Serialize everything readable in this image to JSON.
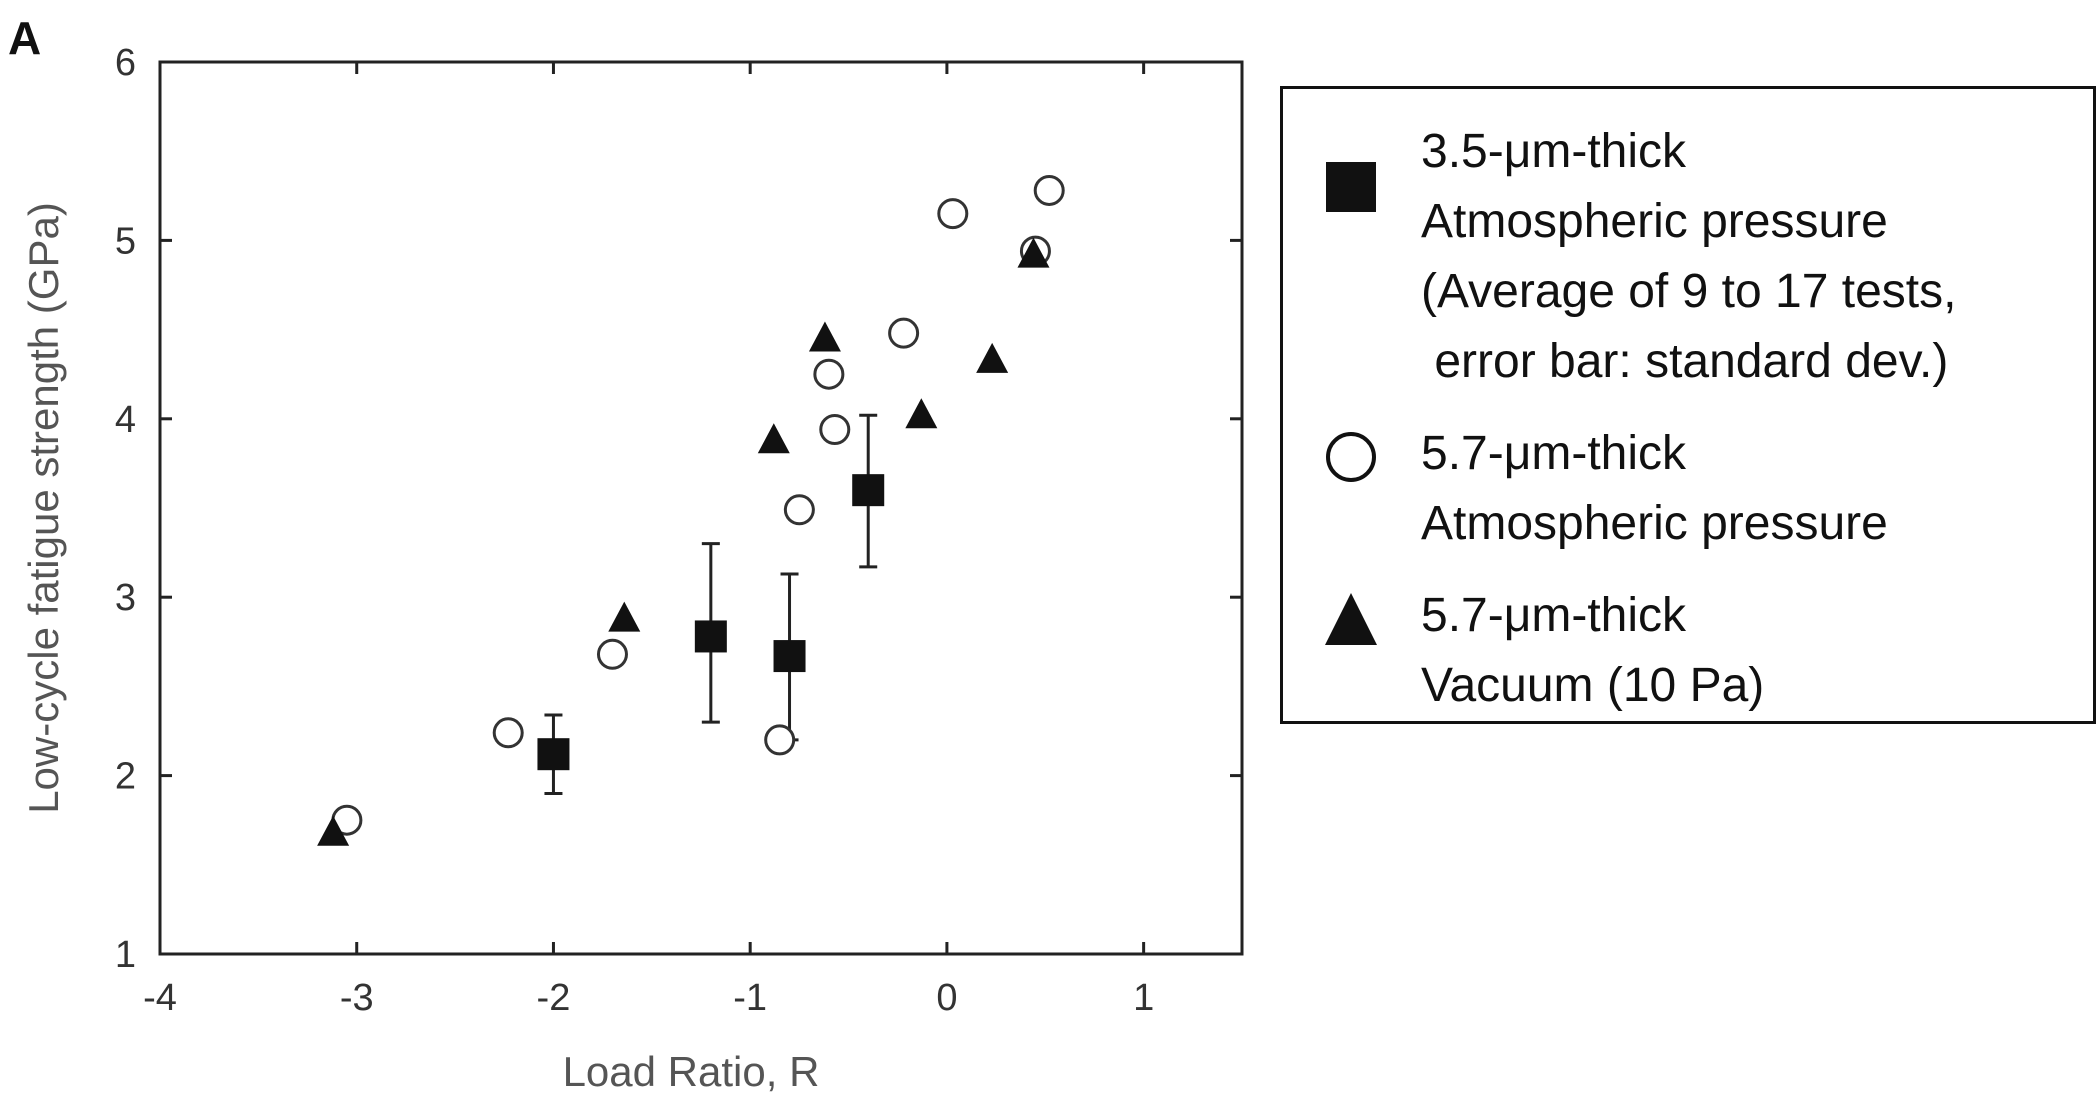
{
  "panel_label": "A",
  "chart_data": {
    "type": "scatter",
    "title": "",
    "xlabel": "Load Ratio, R",
    "ylabel": "Low-cycle fatigue strength (GPa)",
    "xlim": [
      -4,
      1.5
    ],
    "ylim": [
      1,
      6
    ],
    "xticks": [
      -4,
      -3,
      -2,
      -1,
      0,
      1
    ],
    "yticks": [
      1,
      2,
      3,
      4,
      5,
      6
    ],
    "xtick_labels": [
      "-4",
      "-3",
      "-2",
      "-1",
      "0",
      "1"
    ],
    "ytick_labels": [
      "1",
      "2",
      "3",
      "4",
      "5",
      "6"
    ],
    "grid": false,
    "legend_position": "right, outside plot",
    "series": [
      {
        "key": "square",
        "marker": "filled-square",
        "legend_lines": [
          "3.5-μm-thick",
          "Atmospheric pressure",
          "(Average of 9 to 17 tests,",
          " error bar: standard dev.)"
        ],
        "points": [
          {
            "x": -2.0,
            "y": 2.12,
            "err_low": 1.9,
            "err_high": 2.34
          },
          {
            "x": -1.2,
            "y": 2.78,
            "err_low": 2.3,
            "err_high": 3.3
          },
          {
            "x": -0.8,
            "y": 2.67,
            "err_low": 2.2,
            "err_high": 3.13
          },
          {
            "x": -0.4,
            "y": 3.6,
            "err_low": 3.17,
            "err_high": 4.02
          }
        ]
      },
      {
        "key": "circle",
        "marker": "open-circle",
        "legend_lines": [
          "5.7-μm-thick",
          "Atmospheric pressure"
        ],
        "points": [
          {
            "x": -3.05,
            "y": 1.75
          },
          {
            "x": -2.23,
            "y": 2.24
          },
          {
            "x": -1.7,
            "y": 2.68
          },
          {
            "x": -0.85,
            "y": 2.2
          },
          {
            "x": -0.75,
            "y": 3.49
          },
          {
            "x": -0.6,
            "y": 4.25
          },
          {
            "x": -0.57,
            "y": 3.94
          },
          {
            "x": -0.22,
            "y": 4.48
          },
          {
            "x": 0.03,
            "y": 5.15
          },
          {
            "x": 0.45,
            "y": 4.94
          },
          {
            "x": 0.52,
            "y": 5.28
          }
        ]
      },
      {
        "key": "triangle",
        "marker": "filled-triangle",
        "legend_lines": [
          "5.7-μm-thick",
          "Vacuum (10 Pa)"
        ],
        "points": [
          {
            "x": -3.12,
            "y": 1.68
          },
          {
            "x": -1.64,
            "y": 2.88
          },
          {
            "x": -0.88,
            "y": 3.88
          },
          {
            "x": -0.62,
            "y": 4.45
          },
          {
            "x": -0.13,
            "y": 4.02
          },
          {
            "x": 0.23,
            "y": 4.33
          },
          {
            "x": 0.44,
            "y": 4.92
          }
        ]
      }
    ]
  }
}
